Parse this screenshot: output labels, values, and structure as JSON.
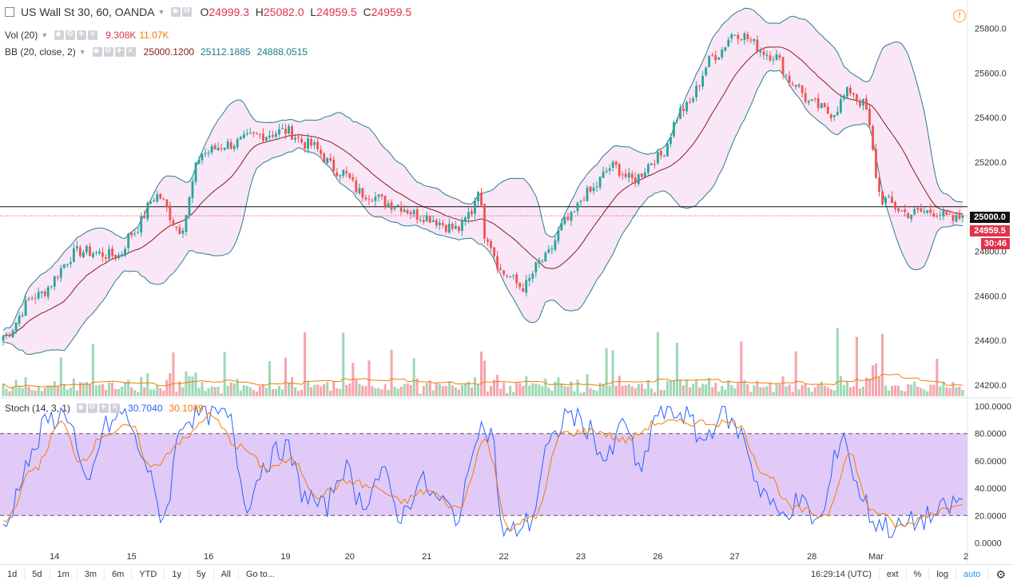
{
  "header": {
    "symbol": "US Wall St 30, 60, OANDA",
    "open_label": "O",
    "open_value": "24999.3",
    "high_label": "H",
    "high_value": "25082.0",
    "low_label": "L",
    "low_value": "24959.5",
    "close_label": "C",
    "close_value": "24959.5"
  },
  "volume": {
    "name": "Vol (20)",
    "value1": "9.308K",
    "value2": "11.07K"
  },
  "bollinger": {
    "name": "BB (20, close, 2)",
    "basis": "25000.1200",
    "upper": "25112.1885",
    "lower": "24888.0515"
  },
  "stoch": {
    "name": "Stoch (14, 3, 1)",
    "k": "30.7040",
    "d": "30.1089"
  },
  "price_tags": {
    "level": "25000.0",
    "last": "24959.5",
    "countdown": "30:46"
  },
  "bottombar": {
    "ranges": [
      "1d",
      "5d",
      "1m",
      "3m",
      "6m",
      "YTD",
      "1y",
      "5y",
      "All",
      "Go to..."
    ],
    "time": "16:29:14 (UTC)",
    "ext": "ext",
    "percent": "%",
    "log": "log",
    "auto": "auto"
  },
  "colors": {
    "up": "#26a69a",
    "down": "#ef5350",
    "bb_fill": "#f9e6f7",
    "bb_band": "#2a7d8f",
    "bb_mid": "#8b1a1a",
    "stoch_band": "#e1caf8",
    "stoch_k": "#2962ff",
    "stoch_d": "#f57c00"
  },
  "icons": {
    "alert": "alert-clock-icon",
    "settings": "gear-icon"
  },
  "chart_data": {
    "type": "candlestick",
    "price_axis_ticks": [
      "25800.0",
      "25600.0",
      "25400.0",
      "25200.0",
      "24800.0",
      "24600.0",
      "24400.0",
      "24200.0"
    ],
    "stoch_axis_ticks": [
      "100.0000",
      "80.0000",
      "60.0000",
      "40.0000",
      "20.0000",
      "0.0000"
    ],
    "x_ticks": [
      {
        "label": "14",
        "t": 16
      },
      {
        "label": "15",
        "t": 40
      },
      {
        "label": "16",
        "t": 64
      },
      {
        "label": "19",
        "t": 88
      },
      {
        "label": "20",
        "t": 108
      },
      {
        "label": "21",
        "t": 132
      },
      {
        "label": "22",
        "t": 156
      },
      {
        "label": "23",
        "t": 180
      },
      {
        "label": "26",
        "t": 204
      },
      {
        "label": "27",
        "t": 228
      },
      {
        "label": "28",
        "t": 252
      },
      {
        "label": "Mar",
        "t": 272
      },
      {
        "label": "2",
        "t": 300
      }
    ],
    "ylim": [
      24150,
      25920
    ],
    "stoch_lim": [
      -5,
      105
    ],
    "price_anchors": [
      [
        0,
        24420
      ],
      [
        10,
        24600
      ],
      [
        24,
        24800
      ],
      [
        36,
        24780
      ],
      [
        40,
        24880
      ],
      [
        48,
        25050
      ],
      [
        55,
        24900
      ],
      [
        62,
        25240
      ],
      [
        70,
        25280
      ],
      [
        80,
        25320
      ],
      [
        88,
        25340
      ],
      [
        95,
        25280
      ],
      [
        105,
        25160
      ],
      [
        112,
        25060
      ],
      [
        122,
        25010
      ],
      [
        130,
        24960
      ],
      [
        142,
        24900
      ],
      [
        146,
        24980
      ],
      [
        148,
        25090
      ],
      [
        150,
        24880
      ],
      [
        156,
        24700
      ],
      [
        162,
        24640
      ],
      [
        168,
        24760
      ],
      [
        176,
        24940
      ],
      [
        182,
        25060
      ],
      [
        190,
        25180
      ],
      [
        196,
        25120
      ],
      [
        204,
        25220
      ],
      [
        212,
        25440
      ],
      [
        222,
        25680
      ],
      [
        228,
        25780
      ],
      [
        240,
        25680
      ],
      [
        246,
        25560
      ],
      [
        252,
        25460
      ],
      [
        258,
        25420
      ],
      [
        264,
        25520
      ],
      [
        268,
        25460
      ],
      [
        274,
        25030
      ],
      [
        282,
        24970
      ],
      [
        290,
        24980
      ],
      [
        296,
        24940
      ],
      [
        300,
        24959.5
      ]
    ],
    "stoch_k_anchors": [
      [
        0,
        10
      ],
      [
        8,
        60
      ],
      [
        14,
        90
      ],
      [
        20,
        95
      ],
      [
        26,
        40
      ],
      [
        32,
        85
      ],
      [
        38,
        95
      ],
      [
        42,
        70
      ],
      [
        50,
        20
      ],
      [
        56,
        90
      ],
      [
        62,
        95
      ],
      [
        70,
        92
      ],
      [
        76,
        30
      ],
      [
        82,
        60
      ],
      [
        88,
        70
      ],
      [
        94,
        35
      ],
      [
        100,
        25
      ],
      [
        106,
        55
      ],
      [
        112,
        30
      ],
      [
        118,
        50
      ],
      [
        124,
        20
      ],
      [
        130,
        45
      ],
      [
        136,
        30
      ],
      [
        142,
        20
      ],
      [
        148,
        85
      ],
      [
        152,
        80
      ],
      [
        156,
        5
      ],
      [
        164,
        15
      ],
      [
        170,
        70
      ],
      [
        176,
        95
      ],
      [
        182,
        85
      ],
      [
        188,
        60
      ],
      [
        194,
        90
      ],
      [
        198,
        50
      ],
      [
        204,
        95
      ],
      [
        212,
        95
      ],
      [
        218,
        75
      ],
      [
        224,
        95
      ],
      [
        230,
        80
      ],
      [
        236,
        40
      ],
      [
        242,
        20
      ],
      [
        248,
        30
      ],
      [
        254,
        15
      ],
      [
        262,
        80
      ],
      [
        266,
        40
      ],
      [
        272,
        15
      ],
      [
        278,
        10
      ],
      [
        284,
        15
      ],
      [
        290,
        20
      ],
      [
        294,
        25
      ],
      [
        298,
        30.704
      ]
    ],
    "stoch_d_anchors": [
      [
        0,
        15
      ],
      [
        10,
        55
      ],
      [
        18,
        88
      ],
      [
        24,
        60
      ],
      [
        32,
        80
      ],
      [
        40,
        85
      ],
      [
        46,
        55
      ],
      [
        56,
        75
      ],
      [
        64,
        93
      ],
      [
        74,
        70
      ],
      [
        82,
        55
      ],
      [
        90,
        60
      ],
      [
        98,
        35
      ],
      [
        108,
        45
      ],
      [
        116,
        40
      ],
      [
        124,
        30
      ],
      [
        132,
        38
      ],
      [
        142,
        25
      ],
      [
        150,
        75
      ],
      [
        158,
        10
      ],
      [
        166,
        20
      ],
      [
        174,
        80
      ],
      [
        184,
        82
      ],
      [
        194,
        75
      ],
      [
        204,
        88
      ],
      [
        216,
        88
      ],
      [
        228,
        88
      ],
      [
        238,
        50
      ],
      [
        246,
        25
      ],
      [
        256,
        20
      ],
      [
        264,
        65
      ],
      [
        270,
        25
      ],
      [
        280,
        12
      ],
      [
        290,
        22
      ],
      [
        298,
        30.1089
      ]
    ],
    "volume_bars": 300
  }
}
